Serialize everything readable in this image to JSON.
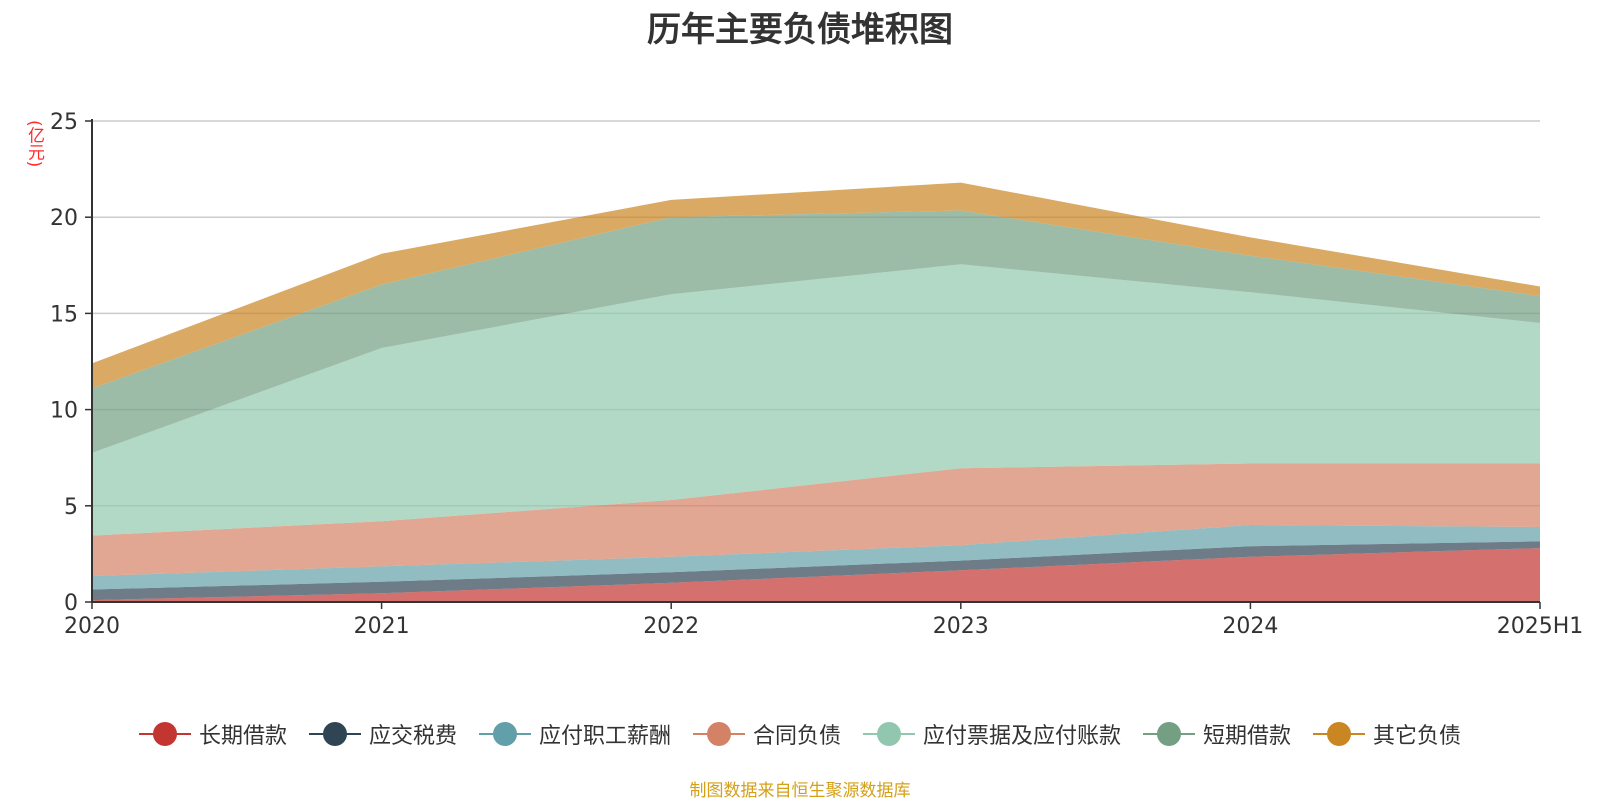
{
  "chart_data": {
    "type": "area",
    "stacked": true,
    "title": "历年主要负债堆积图",
    "unit_label": "(亿元)",
    "categories": [
      "2020",
      "2021",
      "2022",
      "2023",
      "2024",
      "2025H1"
    ],
    "ylim": [
      0,
      25
    ],
    "yticks": [
      0,
      5,
      10,
      15,
      20,
      25
    ],
    "grid": true,
    "legend_position": "bottom",
    "series": [
      {
        "name": "长期借款",
        "color": "#c23531",
        "values": [
          0.1,
          0.45,
          1.0,
          1.65,
          2.35,
          2.8
        ]
      },
      {
        "name": "应交税费",
        "color": "#2f4554",
        "values": [
          0.55,
          0.6,
          0.55,
          0.5,
          0.55,
          0.35
        ]
      },
      {
        "name": "应付职工薪酬",
        "color": "#61a0a8",
        "values": [
          0.7,
          0.8,
          0.8,
          0.8,
          1.1,
          0.75
        ]
      },
      {
        "name": "合同负债",
        "color": "#d48265",
        "values": [
          2.1,
          2.35,
          2.95,
          4.0,
          3.2,
          3.3
        ]
      },
      {
        "name": "应付票据及应付账款",
        "color": "#91c7ae",
        "values": [
          4.3,
          9.0,
          10.7,
          10.6,
          8.9,
          7.3
        ]
      },
      {
        "name": "短期借款",
        "color": "#749f83",
        "values": [
          3.35,
          3.3,
          4.0,
          2.8,
          1.9,
          1.4
        ]
      },
      {
        "name": "其它负债",
        "color": "#ca8622",
        "values": [
          1.3,
          1.6,
          0.9,
          1.45,
          0.95,
          0.5
        ]
      }
    ]
  },
  "source_note": "制图数据来自恒生聚源数据库"
}
